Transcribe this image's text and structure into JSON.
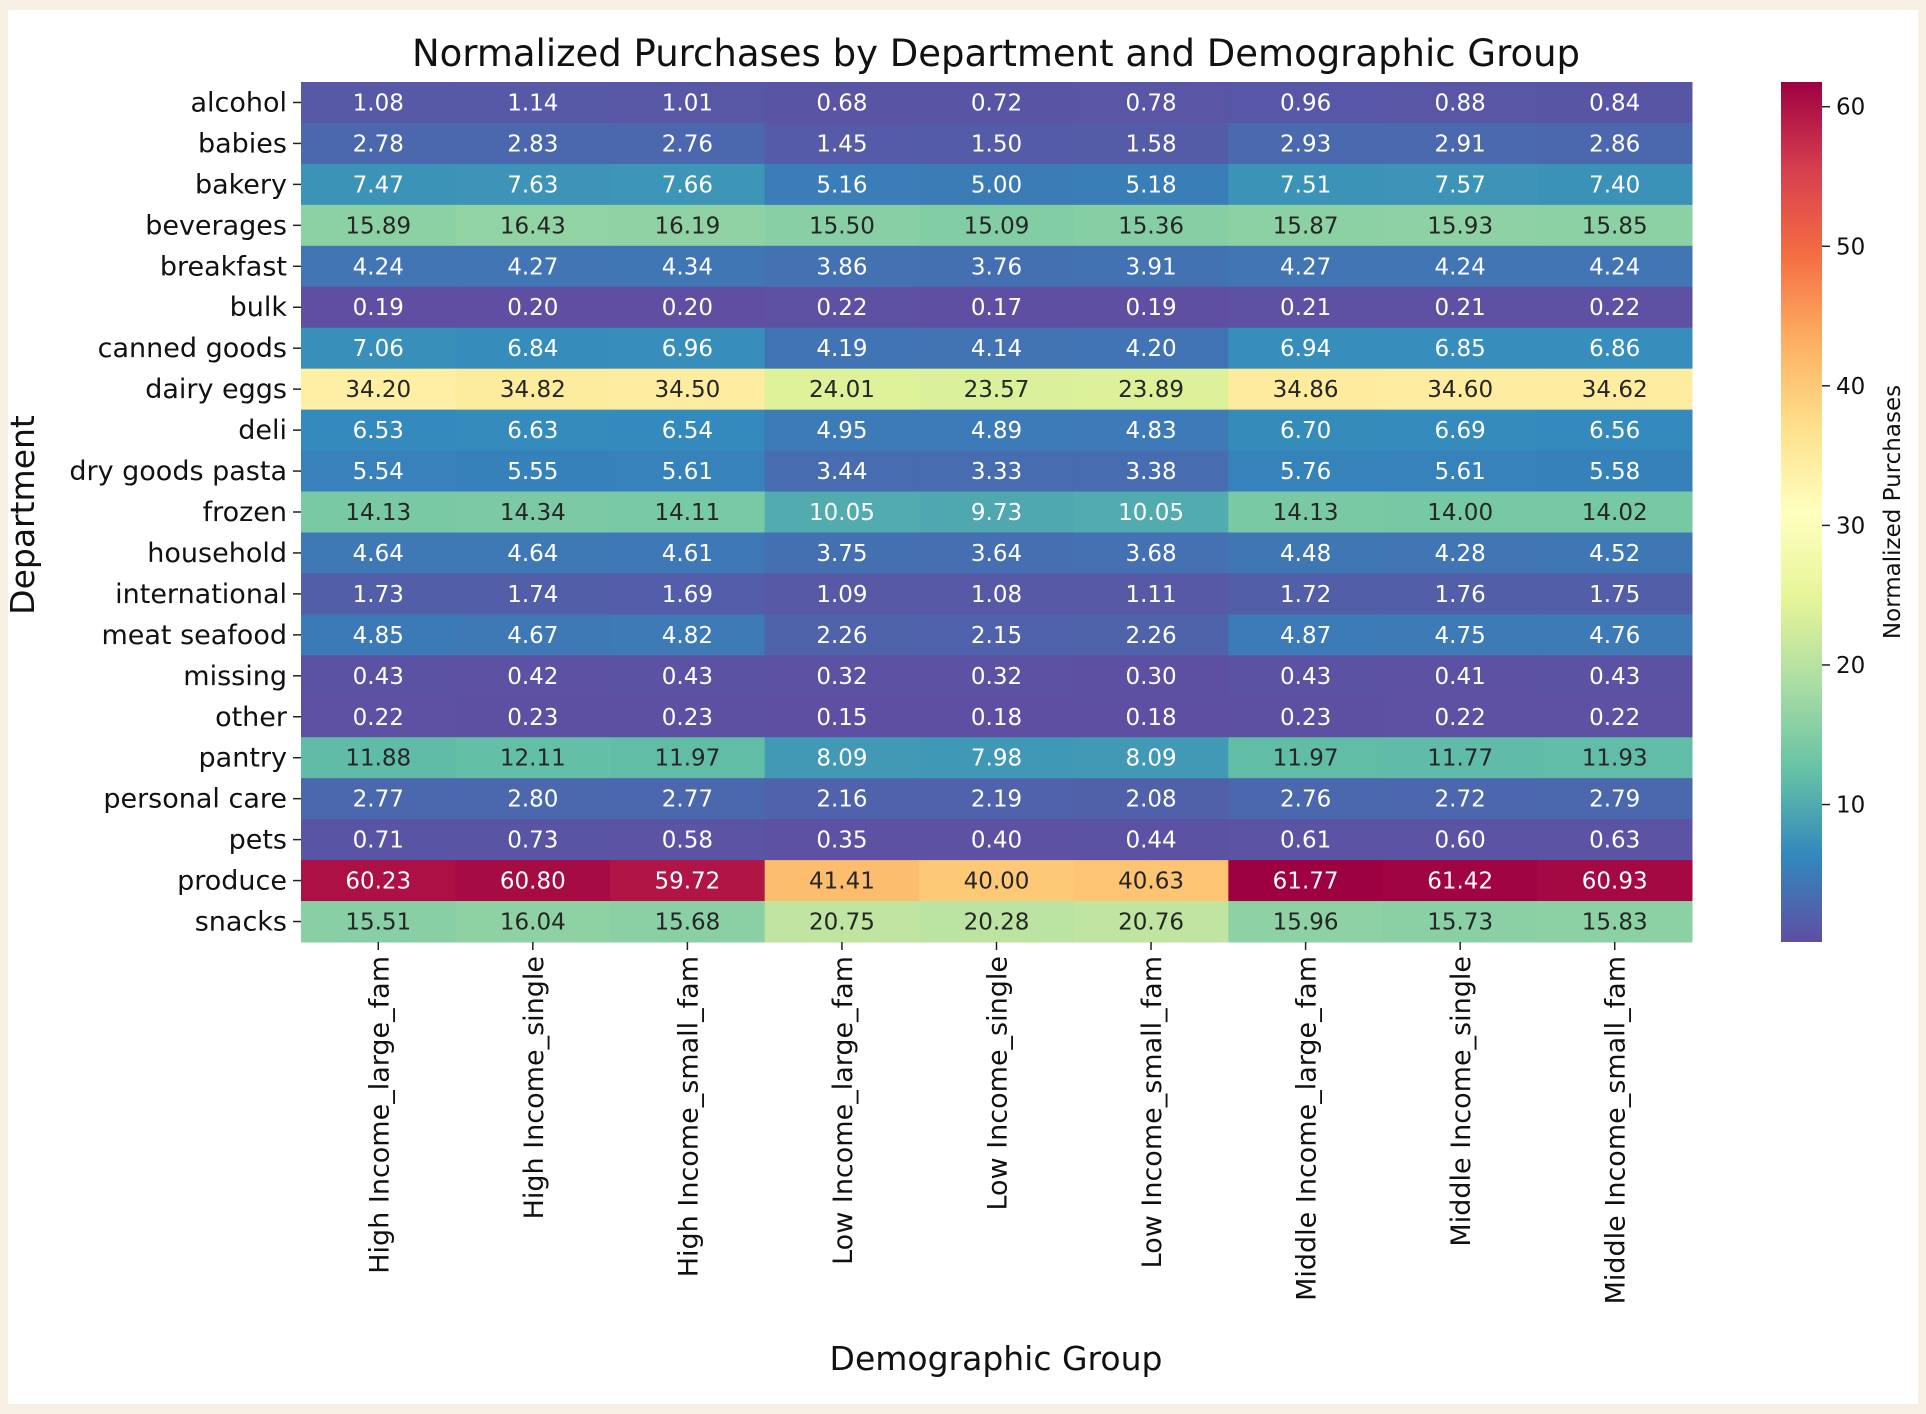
{
  "chart_data": {
    "type": "heatmap",
    "title": "Normalized Purchases by Department and Demographic Group",
    "xlabel": "Demographic Group",
    "ylabel": "Department",
    "colorbar_label": "Normalized Purchases",
    "colormap": "Spectral_r",
    "colorbar_ticks": [
      10,
      20,
      30,
      40,
      50,
      60
    ],
    "value_range": [
      0.15,
      61.77
    ],
    "columns": [
      "High Income_large_fam",
      "High Income_single",
      "High Income_small_fam",
      "Low Income_large_fam",
      "Low Income_single",
      "Low Income_small_fam",
      "Middle Income_large_fam",
      "Middle Income_single",
      "Middle Income_small_fam"
    ],
    "rows": [
      "alcohol",
      "babies",
      "bakery",
      "beverages",
      "breakfast",
      "bulk",
      "canned goods",
      "dairy eggs",
      "deli",
      "dry goods pasta",
      "frozen",
      "household",
      "international",
      "meat seafood",
      "missing",
      "other",
      "pantry",
      "personal care",
      "pets",
      "produce",
      "snacks"
    ],
    "values": [
      [
        1.08,
        1.14,
        1.01,
        0.68,
        0.72,
        0.78,
        0.96,
        0.88,
        0.84
      ],
      [
        2.78,
        2.83,
        2.76,
        1.45,
        1.5,
        1.58,
        2.93,
        2.91,
        2.86
      ],
      [
        7.47,
        7.63,
        7.66,
        5.16,
        5.0,
        5.18,
        7.51,
        7.57,
        7.4
      ],
      [
        15.89,
        16.43,
        16.19,
        15.5,
        15.09,
        15.36,
        15.87,
        15.93,
        15.85
      ],
      [
        4.24,
        4.27,
        4.34,
        3.86,
        3.76,
        3.91,
        4.27,
        4.24,
        4.24
      ],
      [
        0.19,
        0.2,
        0.2,
        0.22,
        0.17,
        0.19,
        0.21,
        0.21,
        0.22
      ],
      [
        7.06,
        6.84,
        6.96,
        4.19,
        4.14,
        4.2,
        6.94,
        6.85,
        6.86
      ],
      [
        34.2,
        34.82,
        34.5,
        24.01,
        23.57,
        23.89,
        34.86,
        34.6,
        34.62
      ],
      [
        6.53,
        6.63,
        6.54,
        4.95,
        4.89,
        4.83,
        6.7,
        6.69,
        6.56
      ],
      [
        5.54,
        5.55,
        5.61,
        3.44,
        3.33,
        3.38,
        5.76,
        5.61,
        5.58
      ],
      [
        14.13,
        14.34,
        14.11,
        10.05,
        9.73,
        10.05,
        14.13,
        14.0,
        14.02
      ],
      [
        4.64,
        4.64,
        4.61,
        3.75,
        3.64,
        3.68,
        4.48,
        4.28,
        4.52
      ],
      [
        1.73,
        1.74,
        1.69,
        1.09,
        1.08,
        1.11,
        1.72,
        1.76,
        1.75
      ],
      [
        4.85,
        4.67,
        4.82,
        2.26,
        2.15,
        2.26,
        4.87,
        4.75,
        4.76
      ],
      [
        0.43,
        0.42,
        0.43,
        0.32,
        0.32,
        0.3,
        0.43,
        0.41,
        0.43
      ],
      [
        0.22,
        0.23,
        0.23,
        0.15,
        0.18,
        0.18,
        0.23,
        0.22,
        0.22
      ],
      [
        11.88,
        12.11,
        11.97,
        8.09,
        7.98,
        8.09,
        11.97,
        11.77,
        11.93
      ],
      [
        2.77,
        2.8,
        2.77,
        2.16,
        2.19,
        2.08,
        2.76,
        2.72,
        2.79
      ],
      [
        0.71,
        0.73,
        0.58,
        0.35,
        0.4,
        0.44,
        0.61,
        0.6,
        0.63
      ],
      [
        60.23,
        60.8,
        59.72,
        41.41,
        40.0,
        40.63,
        61.77,
        61.42,
        60.93
      ],
      [
        15.51,
        16.04,
        15.68,
        20.75,
        20.28,
        20.76,
        15.96,
        15.73,
        15.83
      ]
    ]
  }
}
